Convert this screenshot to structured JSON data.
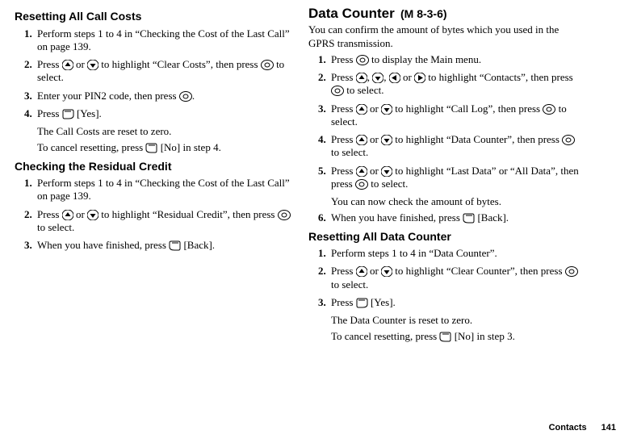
{
  "left": {
    "section_a": {
      "heading": "Resetting All Call Costs",
      "steps": [
        "Perform steps 1 to 4 in “Checking the Cost of the Last Call” on page 139.",
        "Press {up} or {down} to highlight “Clear Costs”, then press {center} to select.",
        "Enter your PIN2 code, then press {center}.",
        "Press {softL} [Yes]."
      ],
      "note1": "The Call Costs are reset to zero.",
      "note2": "To cancel resetting, press {softR} [No] in step 4."
    },
    "section_b": {
      "heading": "Checking the Residual Credit",
      "steps": [
        "Perform steps 1 to 4 in “Checking the Cost of the Last Call” on page 139.",
        "Press {up} or {down} to highlight “Residual Credit”, then press {center} to select.",
        "When you have finished, press {softR} [Back]."
      ]
    }
  },
  "right": {
    "section_c": {
      "heading": "Data Counter",
      "menu_code": "(M 8-3-6)",
      "intro": "You can confirm the amount of bytes which you used in the GPRS transmission.",
      "steps": [
        "Press {center} to display the Main menu.",
        "Press {up}, {down}, {left} or {right} to highlight “Contacts”, then press {center} to select.",
        "Press {up} or {down} to highlight “Call Log”, then press {center} to select.",
        "Press {up} or {down} to highlight “Data Counter”, then press {center} to select.",
        "Press {up} or {down} to highlight “Last Data” or “All Data”, then press {center} to select.",
        "When you have finished, press {softR} [Back]."
      ],
      "note_after5": "You can now check the amount of bytes."
    },
    "section_d": {
      "heading": "Resetting All Data Counter",
      "steps": [
        "Perform steps 1 to 4 in “Data Counter”.",
        "Press {up} or {down} to highlight “Clear Counter”, then press {center} to select.",
        "Press {softL} [Yes]."
      ],
      "note1": "The Data Counter is reset to zero.",
      "note2": "To cancel resetting, press {softR} [No] in step 3."
    }
  },
  "footer": {
    "label": "Contacts",
    "page": "141"
  }
}
